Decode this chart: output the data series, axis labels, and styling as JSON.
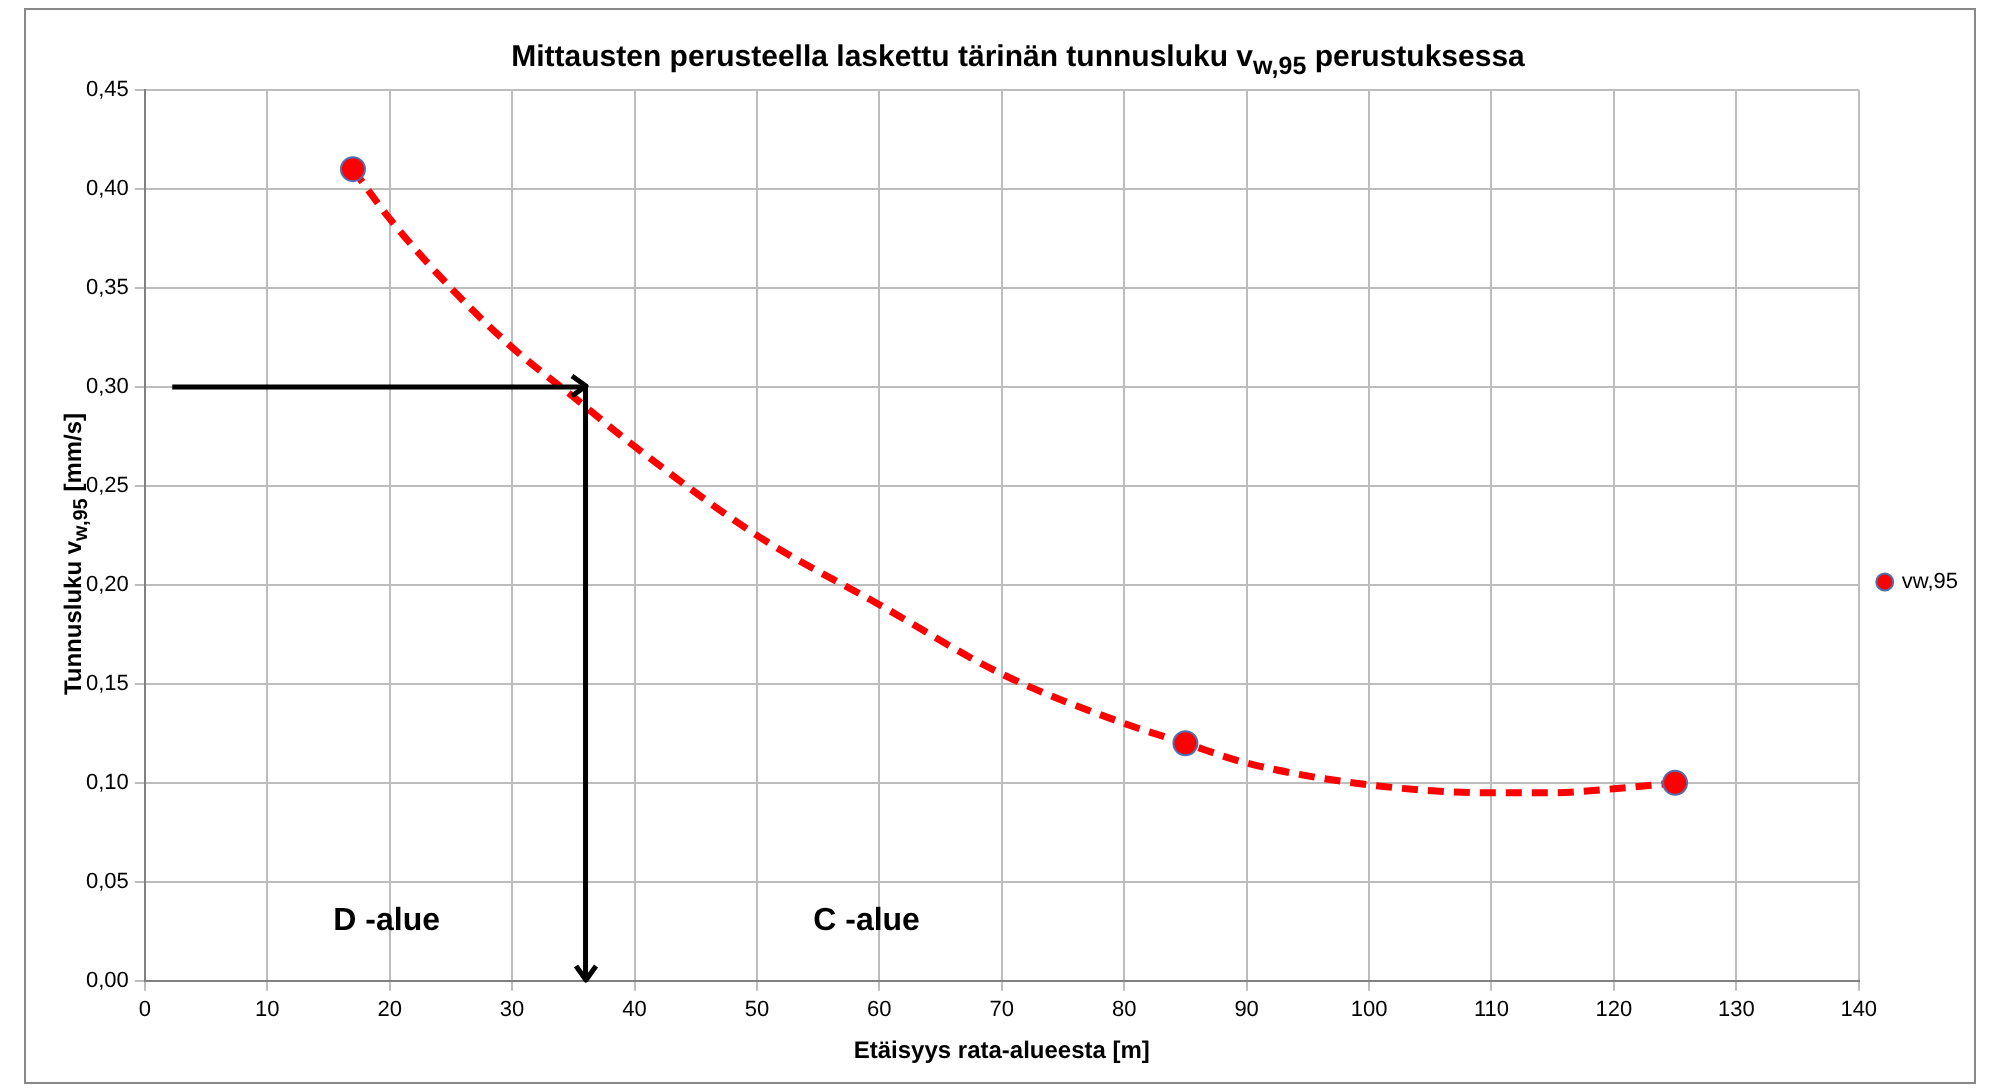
{
  "chart_data": {
    "type": "scatter",
    "title": "Mittausten perusteella laskettu tärinän tunnusluku  v$_{w,95}$ perustuksessa",
    "xlabel": "Etäisyys rata-alueesta [m]",
    "ylabel": "Tunnusluku  v$_{w,95}$ [mm/s]",
    "xlim": [
      0,
      140
    ],
    "xticks": [
      0,
      10,
      20,
      30,
      40,
      50,
      60,
      70,
      80,
      90,
      100,
      110,
      120,
      130,
      140
    ],
    "ylim": [
      0,
      0.45
    ],
    "yticks": [
      {
        "value": 0,
        "label": "0,00"
      },
      {
        "value": 0.05,
        "label": "0,05"
      },
      {
        "value": 0.1,
        "label": "0,10"
      },
      {
        "value": 0.15,
        "label": "0,15"
      },
      {
        "value": 0.2,
        "label": "0,20"
      },
      {
        "value": 0.25,
        "label": "0,25"
      },
      {
        "value": 0.3,
        "label": "0,30"
      },
      {
        "value": 0.35,
        "label": "0,35"
      },
      {
        "value": 0.4,
        "label": "0,40"
      },
      {
        "value": 0.45,
        "label": "0,45"
      }
    ],
    "grid": true,
    "legend": "right",
    "marker": "circle",
    "series": [
      {
        "type": "line",
        "color": "#ff0000",
        "line_style": "dashed",
        "marker": "none",
        "x": [
          17,
          20,
          25,
          30,
          35,
          40,
          50,
          60,
          70,
          80,
          85,
          90,
          100,
          110,
          115,
          120,
          125
        ],
        "values": [
          0.41,
          0.385,
          0.35,
          0.32,
          0.295,
          0.27,
          0.225,
          0.19,
          0.155,
          0.13,
          0.12,
          0.11,
          0.099,
          0.095,
          0.095,
          0.097,
          0.1
        ]
      },
      {
        "name": "vw,95",
        "color": "#ff0000",
        "x": [
          17,
          85,
          125
        ],
        "values": [
          0.41,
          0.12,
          0.1
        ]
      }
    ],
    "ref_lines": [
      {
        "axis": "y",
        "value": 0.3,
        "color": "#000000"
      },
      {
        "axis": "x",
        "value": 36,
        "color": "#000000"
      }
    ],
    "annotations": [
      "D -alue",
      "C -alue"
    ]
  }
}
